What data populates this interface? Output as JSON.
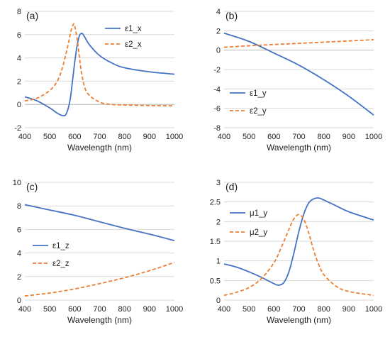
{
  "chart_data": [
    {
      "type": "line",
      "panel_label": "(a)",
      "xlabel": "Wavelength (nm)",
      "ylabel": "",
      "xlim": [
        400,
        1000
      ],
      "ylim": [
        -2,
        8
      ],
      "xticks": [
        "400",
        "500",
        "600",
        "700",
        "800",
        "900",
        "1000"
      ],
      "yticks": [
        "-2",
        "0",
        "2",
        "4",
        "6",
        "8"
      ],
      "grid": "horizontal",
      "legend": "top-right",
      "series": [
        {
          "name": "ε1_x",
          "color": "#4472C4",
          "dash": "solid",
          "x": [
            400,
            450,
            500,
            530,
            550,
            565,
            580,
            590,
            600,
            610,
            620,
            630,
            640,
            660,
            700,
            750,
            800,
            900,
            1000
          ],
          "y": [
            0.65,
            0.3,
            -0.3,
            -0.75,
            -0.95,
            -0.85,
            0.2,
            1.8,
            3.6,
            5.1,
            5.95,
            6.1,
            5.8,
            5.1,
            4.2,
            3.55,
            3.15,
            2.8,
            2.6
          ]
        },
        {
          "name": "ε2_x",
          "color": "#ED7D31",
          "dash": "dashed",
          "x": [
            400,
            450,
            500,
            530,
            550,
            570,
            585,
            595,
            600,
            610,
            620,
            630,
            650,
            700,
            750,
            800,
            900,
            1000
          ],
          "y": [
            0.3,
            0.55,
            1.2,
            2.0,
            3.1,
            4.8,
            6.3,
            6.9,
            6.75,
            5.6,
            3.9,
            2.4,
            1.0,
            0.2,
            0.0,
            -0.05,
            -0.1,
            -0.12
          ]
        }
      ]
    },
    {
      "type": "line",
      "panel_label": "(b)",
      "xlabel": "Wavelength (nm)",
      "ylabel": "",
      "xlim": [
        400,
        1000
      ],
      "ylim": [
        -8,
        4
      ],
      "xticks": [
        "400",
        "500",
        "600",
        "700",
        "800",
        "900",
        "1000"
      ],
      "yticks": [
        "-8",
        "-6",
        "-4",
        "-2",
        "0",
        "2",
        "4"
      ],
      "grid": "horizontal",
      "legend": "bottom-left",
      "series": [
        {
          "name": "ε1_y",
          "color": "#4472C4",
          "dash": "solid",
          "x": [
            400,
            500,
            600,
            700,
            800,
            900,
            1000
          ],
          "y": [
            1.75,
            0.9,
            -0.3,
            -1.55,
            -3.05,
            -4.75,
            -6.7
          ]
        },
        {
          "name": "ε2_y",
          "color": "#ED7D31",
          "dash": "dashed",
          "x": [
            400,
            500,
            600,
            700,
            800,
            900,
            1000
          ],
          "y": [
            0.3,
            0.45,
            0.58,
            0.7,
            0.82,
            0.95,
            1.08
          ]
        }
      ]
    },
    {
      "type": "line",
      "panel_label": "(c)",
      "xlabel": "Wavelength (nm)",
      "ylabel": "",
      "xlim": [
        400,
        1000
      ],
      "ylim": [
        0,
        10
      ],
      "xticks": [
        "400",
        "500",
        "600",
        "700",
        "800",
        "900",
        "1000"
      ],
      "yticks": [
        "0",
        "2",
        "4",
        "6",
        "8",
        "10"
      ],
      "grid": "horizontal",
      "legend": "middle-left",
      "series": [
        {
          "name": "ε1_z",
          "color": "#4472C4",
          "dash": "solid",
          "x": [
            400,
            500,
            600,
            700,
            800,
            900,
            1000
          ],
          "y": [
            8.1,
            7.65,
            7.2,
            6.65,
            6.1,
            5.6,
            5.05
          ]
        },
        {
          "name": "ε2_z",
          "color": "#ED7D31",
          "dash": "dashed",
          "x": [
            400,
            500,
            600,
            700,
            800,
            900,
            1000
          ],
          "y": [
            0.35,
            0.6,
            0.95,
            1.4,
            1.9,
            2.5,
            3.2
          ]
        }
      ]
    },
    {
      "type": "line",
      "panel_label": "(d)",
      "xlabel": "Wavelength (nm)",
      "ylabel": "",
      "xlim": [
        400,
        1000
      ],
      "ylim": [
        0,
        3
      ],
      "xticks": [
        "400",
        "500",
        "600",
        "700",
        "800",
        "900",
        "1000"
      ],
      "yticks": [
        "0",
        "0.5",
        "1",
        "1.5",
        "2",
        "2.5",
        "3"
      ],
      "grid": "horizontal",
      "legend": "top-left",
      "series": [
        {
          "name": "μ1_y",
          "color": "#4472C4",
          "dash": "solid",
          "x": [
            400,
            450,
            500,
            550,
            600,
            620,
            640,
            660,
            680,
            700,
            720,
            740,
            760,
            780,
            800,
            850,
            900,
            1000
          ],
          "y": [
            0.92,
            0.84,
            0.72,
            0.58,
            0.42,
            0.38,
            0.45,
            0.72,
            1.2,
            1.75,
            2.2,
            2.48,
            2.58,
            2.6,
            2.55,
            2.4,
            2.25,
            2.04
          ]
        },
        {
          "name": "μ2_y",
          "color": "#ED7D31",
          "dash": "dashed",
          "x": [
            400,
            450,
            500,
            550,
            600,
            630,
            660,
            680,
            700,
            720,
            740,
            760,
            780,
            800,
            850,
            900,
            1000
          ],
          "y": [
            0.12,
            0.2,
            0.32,
            0.55,
            0.95,
            1.35,
            1.8,
            2.07,
            2.18,
            2.05,
            1.7,
            1.25,
            0.9,
            0.65,
            0.35,
            0.22,
            0.12
          ]
        }
      ]
    }
  ]
}
